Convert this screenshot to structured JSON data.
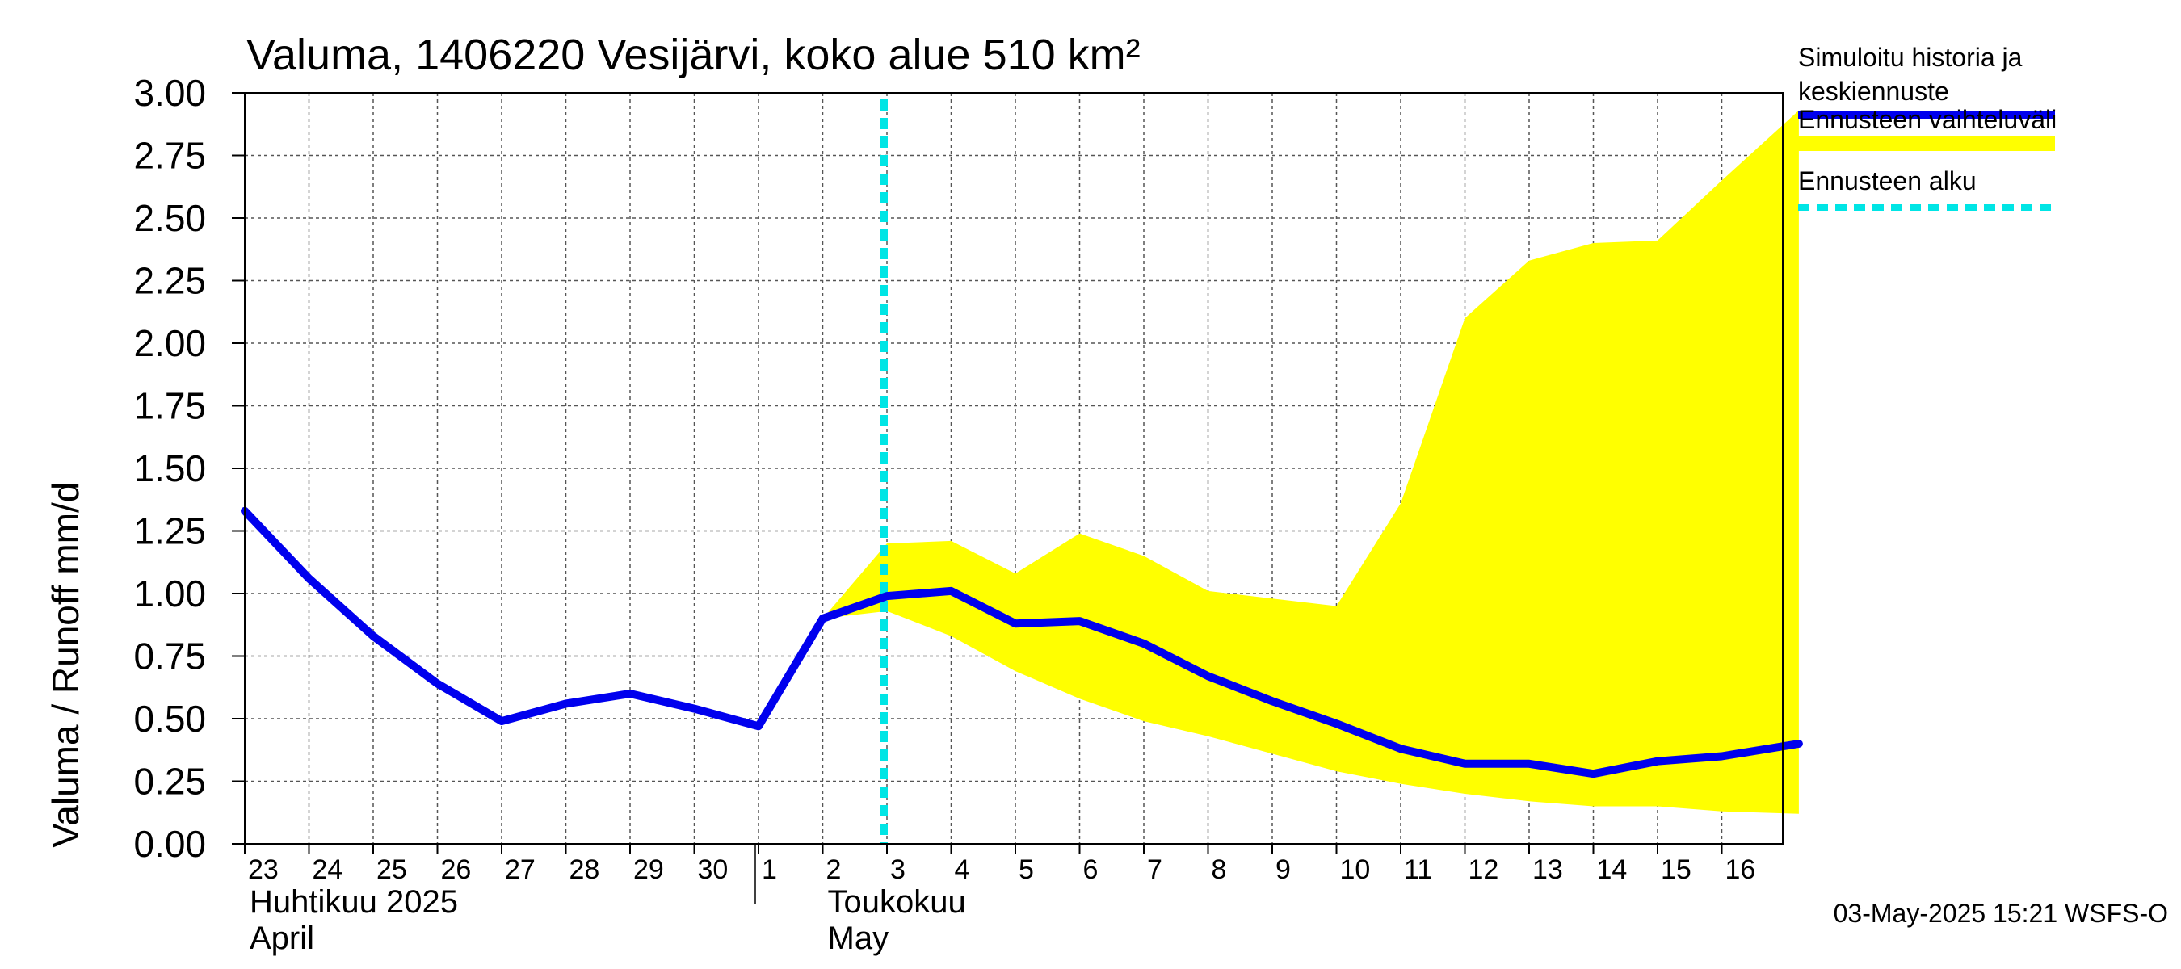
{
  "chart_data": {
    "type": "line",
    "title": "Valuma, 1406220 Vesijärvi, koko alue 510 km²",
    "ylabel": "Valuma / Runoff     mm/d",
    "ylim": [
      0,
      3.0
    ],
    "yticks": [
      "0.00",
      "0.25",
      "0.50",
      "0.75",
      "1.00",
      "1.25",
      "1.50",
      "1.75",
      "2.00",
      "2.25",
      "2.50",
      "2.75",
      "3.00"
    ],
    "xlim": [
      0,
      24.2
    ],
    "xtick_labels": [
      "23",
      "24",
      "25",
      "26",
      "27",
      "28",
      "29",
      "30",
      "1",
      "2",
      "3",
      "4",
      "5",
      "6",
      "7",
      "8",
      "9",
      "10",
      "11",
      "12",
      "13",
      "14",
      "15",
      "16"
    ],
    "months": [
      {
        "line1": "Huhtikuu  2025",
        "line2": "April",
        "start_index": 0
      },
      {
        "line1": "Toukokuu",
        "line2": "May",
        "start_index": 9
      }
    ],
    "forecast_start_x": 10,
    "grid": true,
    "legend_position": "right",
    "series": [
      {
        "name": "Simuloitu historia ja keskiennuste",
        "color": "#0000ee",
        "x": [
          0,
          1,
          2,
          3,
          4,
          5,
          6,
          7,
          8,
          9,
          10,
          11,
          12,
          13,
          14,
          15,
          16,
          17,
          18,
          19,
          20,
          21,
          22,
          23,
          24.2
        ],
        "y": [
          1.33,
          1.06,
          0.83,
          0.64,
          0.49,
          0.56,
          0.6,
          0.54,
          0.47,
          0.9,
          0.99,
          1.01,
          0.88,
          0.89,
          0.8,
          0.67,
          0.57,
          0.48,
          0.38,
          0.32,
          0.32,
          0.28,
          0.33,
          0.35,
          0.4
        ]
      }
    ],
    "band": {
      "name": "Ennusteen vaihteluväli",
      "color": "#ffff00",
      "x": [
        9,
        10,
        11,
        12,
        13,
        14,
        15,
        16,
        17,
        18,
        19,
        20,
        21,
        22,
        23,
        24.2
      ],
      "upper": [
        0.9,
        1.2,
        1.21,
        1.08,
        1.24,
        1.15,
        1.01,
        0.98,
        0.95,
        1.36,
        2.1,
        2.33,
        2.4,
        2.41,
        2.65,
        2.93
      ],
      "lower": [
        0.9,
        0.93,
        0.83,
        0.69,
        0.58,
        0.49,
        0.43,
        0.36,
        0.29,
        0.24,
        0.2,
        0.17,
        0.15,
        0.15,
        0.13,
        0.12
      ]
    },
    "forecast_line": {
      "name": "Ennusteen alku",
      "color": "#00e5e5"
    }
  },
  "legend": {
    "items": [
      {
        "line1": "Simuloitu historia ja",
        "line2": "keskiennuste",
        "color": "#0000ee",
        "style": "solid"
      },
      {
        "line1": "Ennusteen vaihteluväli",
        "line2": "",
        "color": "#ffff00",
        "style": "band"
      },
      {
        "line1": "Ennusteen alku",
        "line2": "",
        "color": "#00e5e5",
        "style": "dashed"
      }
    ]
  },
  "footer": {
    "timestamp": "03-May-2025 15:21 WSFS-O"
  }
}
